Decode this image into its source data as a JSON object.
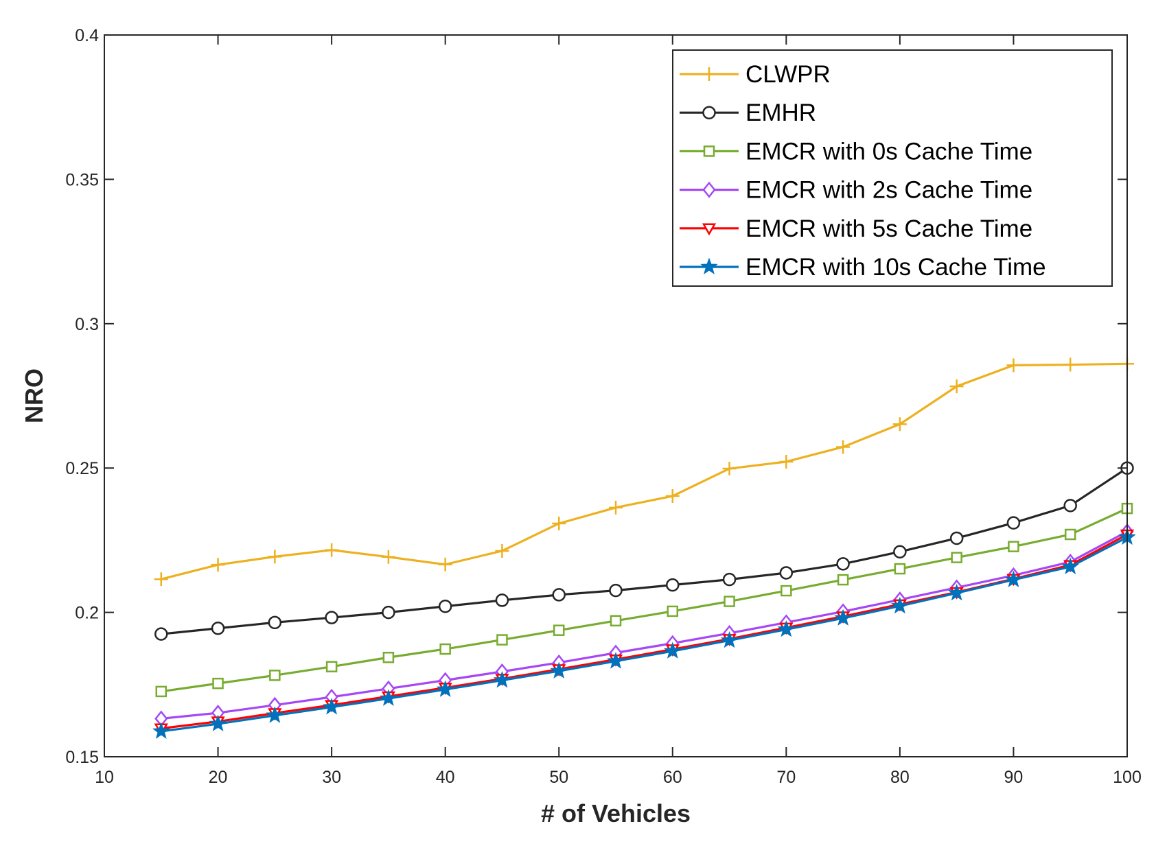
{
  "chart_data": {
    "type": "line",
    "title": "",
    "xlabel": "# of Vehicles",
    "ylabel": "NRO",
    "xlim": [
      10,
      100
    ],
    "ylim": [
      0.15,
      0.4
    ],
    "xticks": [
      10,
      20,
      30,
      40,
      50,
      60,
      70,
      80,
      90,
      100
    ],
    "xtick_labels": [
      "10",
      "20",
      "30",
      "40",
      "50",
      "60",
      "70",
      "80",
      "90",
      "100"
    ],
    "yticks": [
      0.15,
      0.2,
      0.25,
      0.3,
      0.35,
      0.4
    ],
    "ytick_labels": [
      "0.15",
      "0.2",
      "0.25",
      "0.3",
      "0.35",
      "0.4"
    ],
    "grid": false,
    "legend_position": "top-right",
    "x": [
      15,
      20,
      25,
      30,
      35,
      40,
      45,
      50,
      55,
      60,
      65,
      70,
      75,
      80,
      85,
      90,
      95,
      100
    ],
    "series": [
      {
        "name": "CLWPR",
        "color": "#EDB120",
        "marker": "plus",
        "values": [
          0.2115,
          0.2165,
          0.2193,
          0.2216,
          0.2192,
          0.2166,
          0.2213,
          0.2308,
          0.2363,
          0.2403,
          0.2498,
          0.2522,
          0.2573,
          0.2652,
          0.2783,
          0.2856,
          0.2858,
          0.2861
        ]
      },
      {
        "name": "EMHR",
        "color": "#262626",
        "marker": "circle",
        "values": [
          0.1925,
          0.1945,
          0.1965,
          0.1982,
          0.2,
          0.2021,
          0.2042,
          0.2061,
          0.2076,
          0.2095,
          0.2114,
          0.2137,
          0.2168,
          0.221,
          0.2257,
          0.231,
          0.237,
          0.25
        ]
      },
      {
        "name": "EMCR with 0s Cache Time",
        "color": "#77AC30",
        "marker": "square",
        "values": [
          0.1726,
          0.1754,
          0.1782,
          0.1812,
          0.1844,
          0.1873,
          0.1905,
          0.1938,
          0.1971,
          0.2004,
          0.2038,
          0.2075,
          0.2113,
          0.2151,
          0.219,
          0.2228,
          0.227,
          0.236
        ]
      },
      {
        "name": "EMCR with 2s Cache Time",
        "color": "#A547F5",
        "marker": "diamond",
        "values": [
          0.1632,
          0.1652,
          0.1679,
          0.1707,
          0.1736,
          0.1765,
          0.1795,
          0.1826,
          0.186,
          0.1893,
          0.1928,
          0.1965,
          0.2003,
          0.2044,
          0.2086,
          0.2128,
          0.2175,
          0.228
        ]
      },
      {
        "name": "EMCR with 5s Cache Time",
        "color": "#FF0000",
        "marker": "triangle-down",
        "values": [
          0.1598,
          0.1622,
          0.1651,
          0.1679,
          0.1709,
          0.1739,
          0.177,
          0.1803,
          0.1837,
          0.1872,
          0.1908,
          0.1947,
          0.1986,
          0.2028,
          0.207,
          0.2116,
          0.2164,
          0.227
        ]
      },
      {
        "name": "EMCR with 10s Cache Time",
        "color": "#0072BD",
        "marker": "star",
        "values": [
          0.1588,
          0.1614,
          0.1643,
          0.1672,
          0.1702,
          0.1733,
          0.1765,
          0.1797,
          0.1831,
          0.1866,
          0.1903,
          0.1941,
          0.198,
          0.2022,
          0.2067,
          0.2113,
          0.2158,
          0.226
        ]
      }
    ]
  }
}
